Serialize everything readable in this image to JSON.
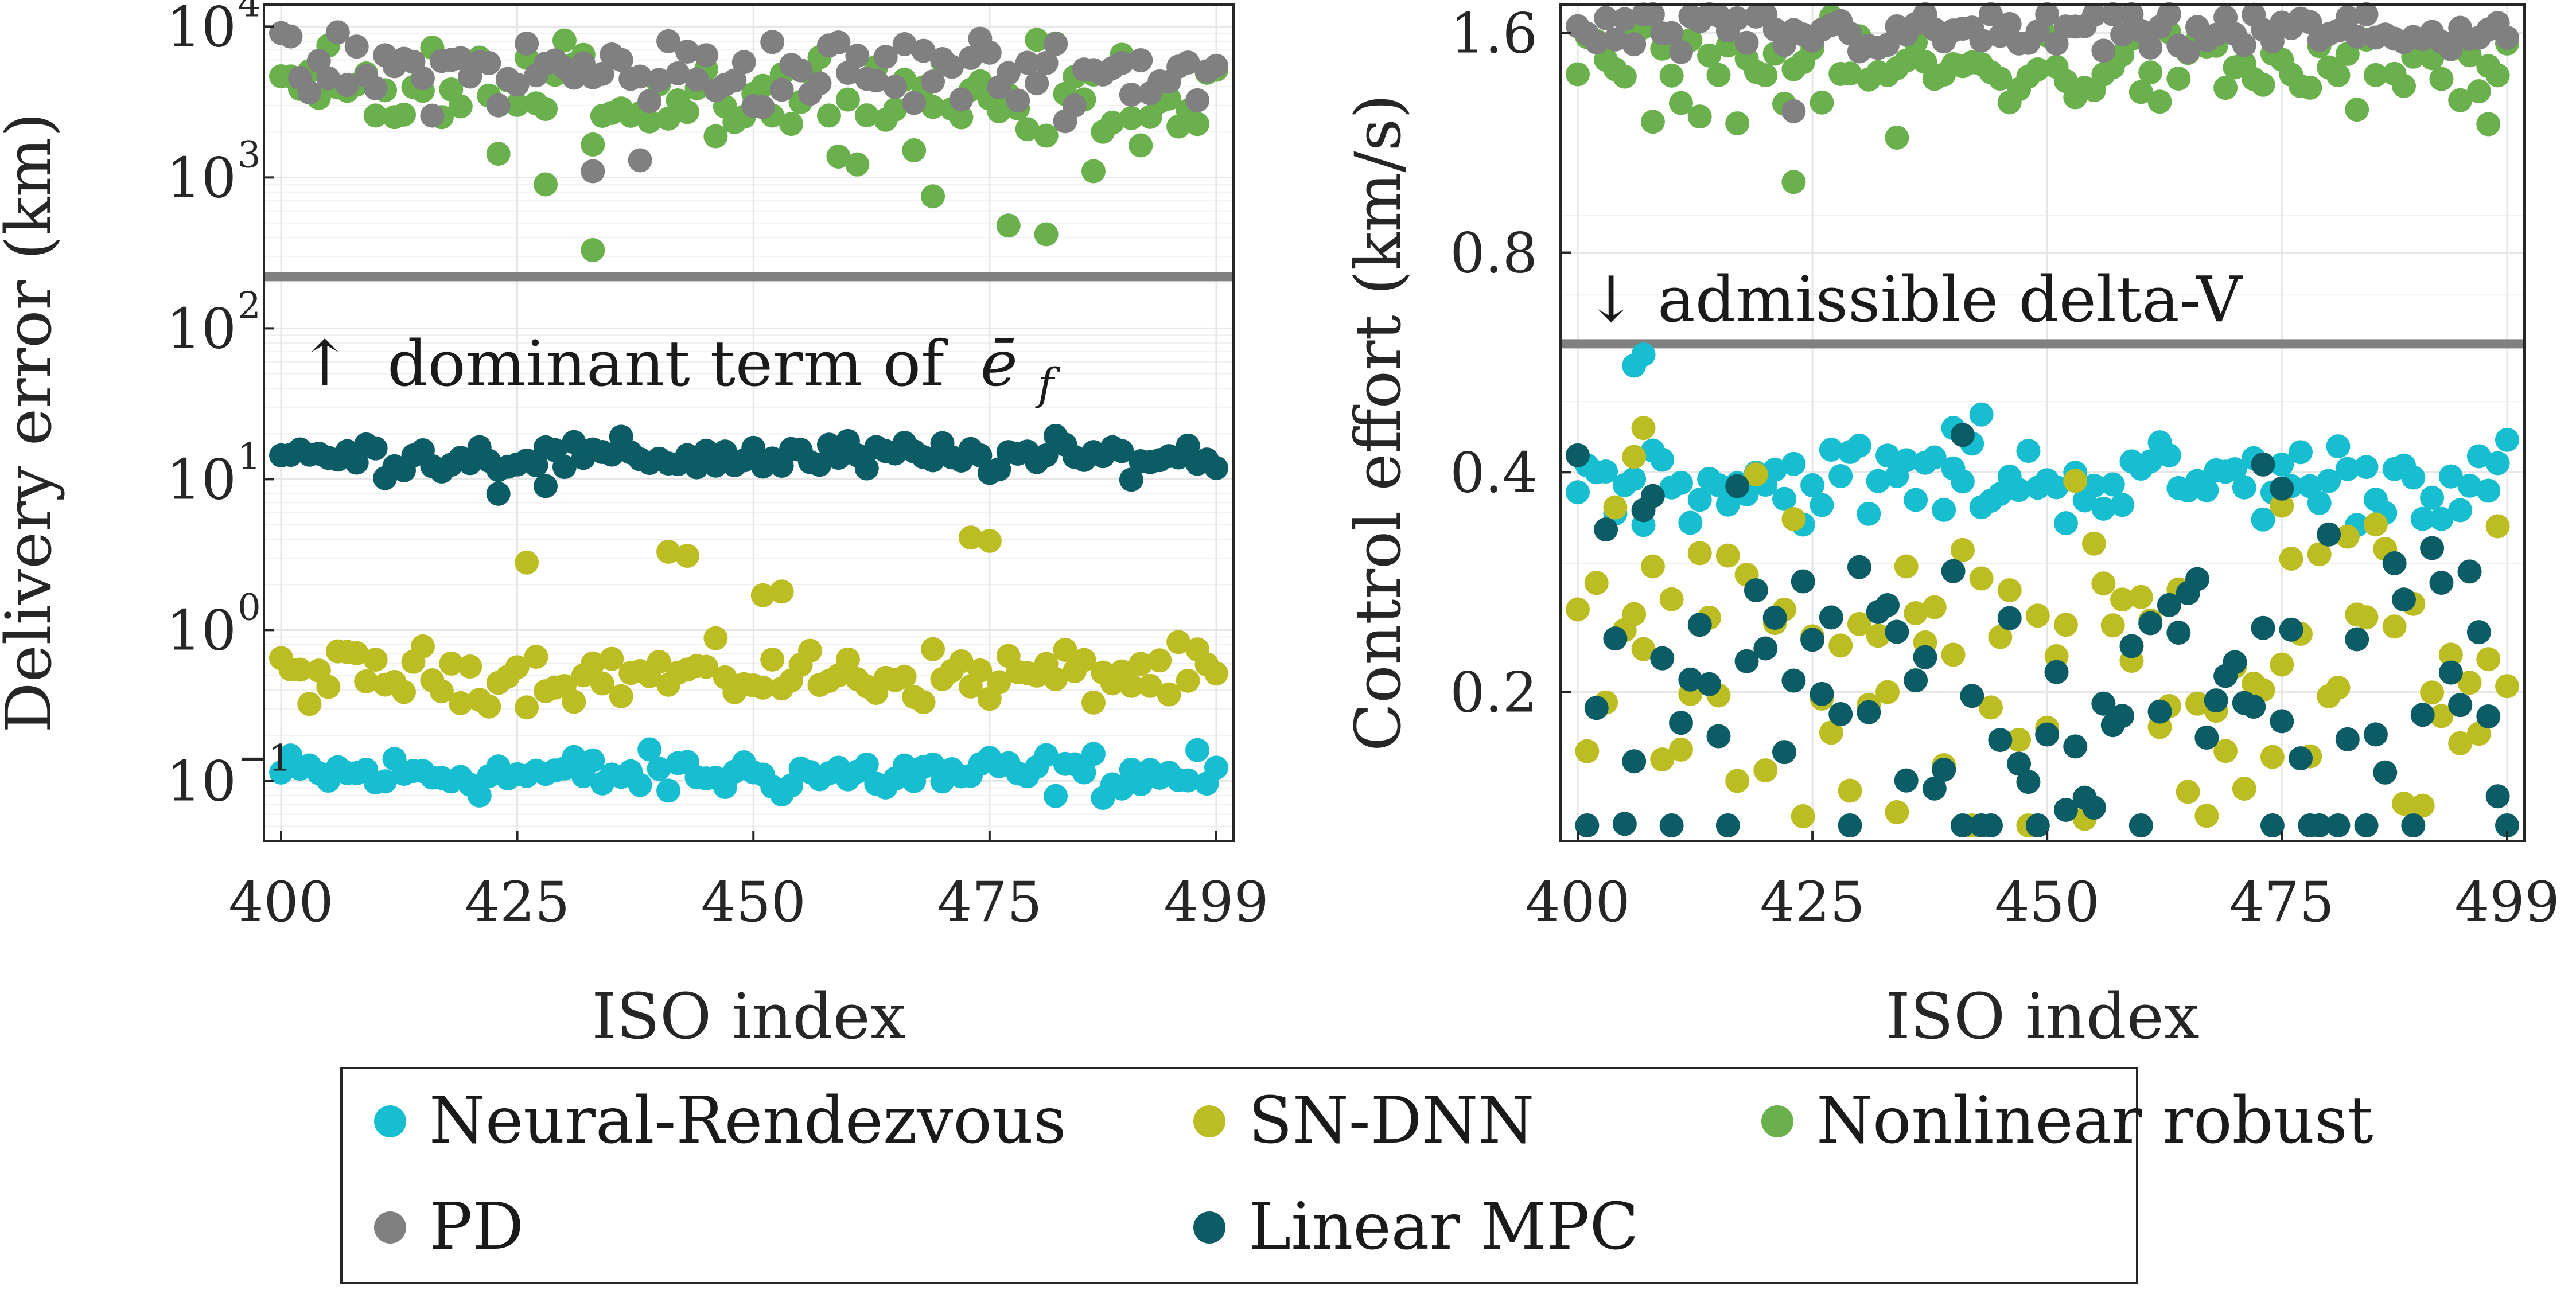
{
  "chart_data": [
    {
      "type": "scatter",
      "panel": "left",
      "xlabel": "ISO index",
      "ylabel": "Delivery error (km)",
      "yscale": "log",
      "xlim": [
        400,
        499
      ],
      "ylim": [
        0.04,
        14000
      ],
      "x_ticks": [
        400,
        425,
        450,
        475,
        499
      ],
      "y_ticks": [
        {
          "value": 0.1,
          "base": "10",
          "exp": "−1"
        },
        {
          "value": 1,
          "base": "10",
          "exp": "0"
        },
        {
          "value": 10,
          "base": "10",
          "exp": "1"
        },
        {
          "value": 100,
          "base": "10",
          "exp": "2"
        },
        {
          "value": 1000,
          "base": "10",
          "exp": "3"
        },
        {
          "value": 10000,
          "base": "10",
          "exp": "4"
        }
      ],
      "threshold": {
        "value": 220,
        "label": "↑ dominant term of ē_f"
      },
      "series": [
        {
          "name": "Neural-Rendezvous",
          "color": "#17becf",
          "center": 0.11,
          "spread": 0.13,
          "outliers": []
        },
        {
          "name": "SN-DNN",
          "color": "#bcbd22",
          "center": 0.5,
          "spread": 0.16,
          "outliers": [
            [
              426,
              2.8
            ],
            [
              441,
              3.3
            ],
            [
              443,
              3.1
            ],
            [
              451,
              1.7
            ],
            [
              453,
              1.8
            ],
            [
              473,
              4.1
            ],
            [
              475,
              3.9
            ]
          ]
        },
        {
          "name": "Nonlinear robust",
          "color": "#6ab04c",
          "center": 3500,
          "spread": 0.28,
          "outliers": [
            [
              433,
              330
            ],
            [
              428,
              900
            ],
            [
              469,
              750
            ],
            [
              477,
              480
            ],
            [
              481,
              420
            ],
            [
              486,
              1100
            ]
          ]
        },
        {
          "name": "PD",
          "color": "#808080",
          "center": 5000,
          "spread": 0.22,
          "outliers": [
            [
              433,
              1100
            ],
            [
              438,
              1300
            ]
          ]
        },
        {
          "name": "Linear MPC",
          "color": "#0b5c64",
          "center": 14,
          "spread": 0.1,
          "outliers": [
            [
              423,
              8
            ],
            [
              428,
              9
            ]
          ]
        }
      ]
    },
    {
      "type": "scatter",
      "panel": "right",
      "xlabel": "ISO index",
      "ylabel": "Control effort (km/s)",
      "yscale": "log",
      "xlim": [
        400,
        499
      ],
      "ylim": [
        0.125,
        1.75
      ],
      "x_ticks": [
        400,
        425,
        450,
        475,
        499
      ],
      "y_ticks": [
        {
          "value": 0.2,
          "label": "0.2"
        },
        {
          "value": 0.4,
          "label": "0.4"
        },
        {
          "value": 0.8,
          "label": "0.8"
        },
        {
          "value": 1.6,
          "label": "1.6"
        }
      ],
      "threshold": {
        "value": 0.6,
        "label": "↓ admissible delta-V"
      },
      "series": [
        {
          "name": "Neural-Rendezvous",
          "color": "#17becf",
          "center": 0.39,
          "spread": 0.05,
          "outliers": [
            [
              406,
              0.56
            ],
            [
              407,
              0.58
            ],
            [
              443,
              0.48
            ],
            [
              440,
              0.46
            ]
          ]
        },
        {
          "name": "SN-DNN",
          "color": "#bcbd22",
          "center": 0.22,
          "spread": 0.2,
          "outliers": [
            [
              407,
              0.46
            ],
            [
              406,
              0.42
            ],
            [
              475,
              0.36
            ]
          ]
        },
        {
          "name": "Nonlinear robust",
          "color": "#6ab04c",
          "center": 1.42,
          "spread": 0.05,
          "outliers": [
            [
              423,
              1.0
            ],
            [
              434,
              1.15
            ],
            [
              497,
              1.2
            ]
          ]
        },
        {
          "name": "PD",
          "color": "#808080",
          "center": 1.6,
          "spread": 0.03,
          "outliers": [
            [
              423,
              1.25
            ]
          ]
        },
        {
          "name": "Linear MPC",
          "color": "#0b5c64",
          "center": 0.19,
          "spread": 0.24,
          "outliers": [
            [
              441,
              0.45
            ],
            [
              473,
              0.41
            ],
            [
              475,
              0.38
            ]
          ]
        }
      ]
    }
  ],
  "legend": {
    "items": [
      {
        "label": "Neural-Rendezvous",
        "color": "#17becf"
      },
      {
        "label": "SN-DNN",
        "color": "#bcbd22"
      },
      {
        "label": "Nonlinear robust",
        "color": "#6ab04c"
      },
      {
        "label": "PD",
        "color": "#808080"
      },
      {
        "label": "Linear MPC",
        "color": "#0b5c64"
      }
    ]
  },
  "annotations": {
    "left_arrow": "↑",
    "left_text": "dominant term of",
    "left_symbol": "ē",
    "left_subscript": "f",
    "right_text": "↓ admissible delta-V"
  }
}
